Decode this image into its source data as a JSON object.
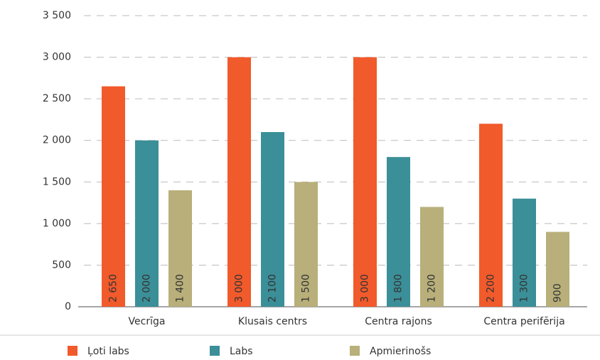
{
  "chart_data": {
    "type": "bar",
    "categories": [
      "Vecrīga",
      "Klusais centrs",
      "Centra rajons",
      "Centra perifērija"
    ],
    "series": [
      {
        "name": "Ļoti labs",
        "color": "#f15a2b",
        "values": [
          2650,
          3000,
          3000,
          2200
        ],
        "value_labels": [
          "2 650",
          "3 000",
          "3 000",
          "2 200"
        ]
      },
      {
        "name": "Labs",
        "color": "#3b8f98",
        "values": [
          2000,
          2100,
          1800,
          1300
        ],
        "value_labels": [
          "2 000",
          "2 100",
          "1 800",
          "1 300"
        ]
      },
      {
        "name": "Apmierinošs",
        "color": "#b8af7a",
        "values": [
          1400,
          1500,
          1200,
          900
        ],
        "value_labels": [
          "1 400",
          "1 500",
          "1 200",
          "900"
        ]
      }
    ],
    "ylim": [
      0,
      3500
    ],
    "yticks": [
      0,
      500,
      {
        "value": 1000,
        "label": "1 000"
      },
      {
        "value": 1500,
        "label": "1 500"
      },
      {
        "value": 2000,
        "label": "2 000"
      },
      {
        "value": 2500,
        "label": "2 500"
      },
      {
        "value": 3000,
        "label": "3 000"
      },
      {
        "value": 3500,
        "label": "3 500"
      }
    ],
    "grid": true,
    "legend": "bottom"
  }
}
